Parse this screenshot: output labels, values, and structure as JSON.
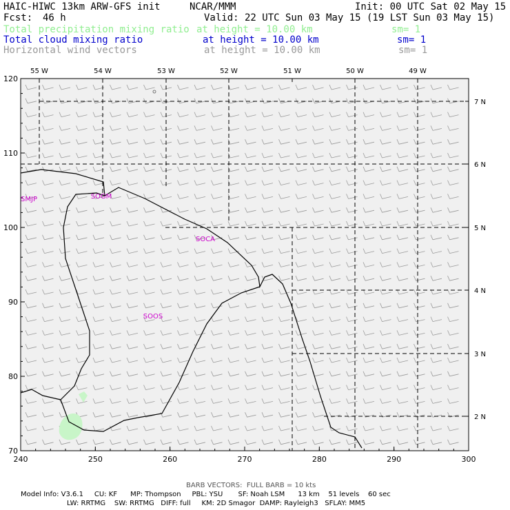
{
  "header": {
    "model_title": "HAIC-HIWC 13km ARW-GFS init",
    "organization": "NCAR/MMM",
    "init_time": "Init: 00 UTC Sat 02 May 15",
    "forecast_label": "Fcst:",
    "forecast_hours": "46 h",
    "valid_time": "Valid: 22 UTC Sun 03 May 15 (19 LST Sun 03 May 15)",
    "fields": [
      {
        "name": "Total precipitation mixing ratio",
        "level": "at height = 10.00 km",
        "smooth": "sm= 1",
        "color": "#90ee90"
      },
      {
        "name": "Total cloud mixing ratio",
        "level": "at height = 10.00 km",
        "smooth": "sm= 1",
        "color": "#0000cc"
      },
      {
        "name": "Horizontal wind vectors",
        "level": "at height = 10.00 km",
        "smooth": "sm= 1",
        "color": "#999999"
      }
    ]
  },
  "footer": {
    "barb_note": "BARB VECTORS:  FULL BARB = 10 kts",
    "model_info_line1": "Model Info: V3.6.1     CU: KF      MP: Thompson     PBL: YSU       SF: Noah LSM      13 km    51 levels    60 sec",
    "model_info_line2": "LW: RRTMG    SW: RRTMG   DIFF: full     KM: 2D Smagor  DAMP: Rayleigh3   SFLAY: MM5"
  },
  "chart_data": {
    "type": "map",
    "x_ticks": [
      "240",
      "250",
      "260",
      "270",
      "280",
      "290",
      "300"
    ],
    "x_range": [
      240,
      300
    ],
    "y_ticks": [
      "70",
      "80",
      "90",
      "100",
      "110",
      "120"
    ],
    "y_range": [
      70,
      120
    ],
    "longitude_labels": [
      "55 W",
      "54 W",
      "53 W",
      "52 W",
      "51 W",
      "50 W",
      "49 W"
    ],
    "latitude_labels": [
      "7 N",
      "6 N",
      "5 N",
      "4 N",
      "3 N",
      "2 N"
    ],
    "station_labels": [
      "SMJP",
      "SOGM",
      "SOCA",
      "SOOS"
    ],
    "colors": {
      "precip_fill": "#c8f5c8",
      "station_text": "#cc00cc",
      "barb": "#999999",
      "plot_bg": "#f0f0f0"
    }
  }
}
